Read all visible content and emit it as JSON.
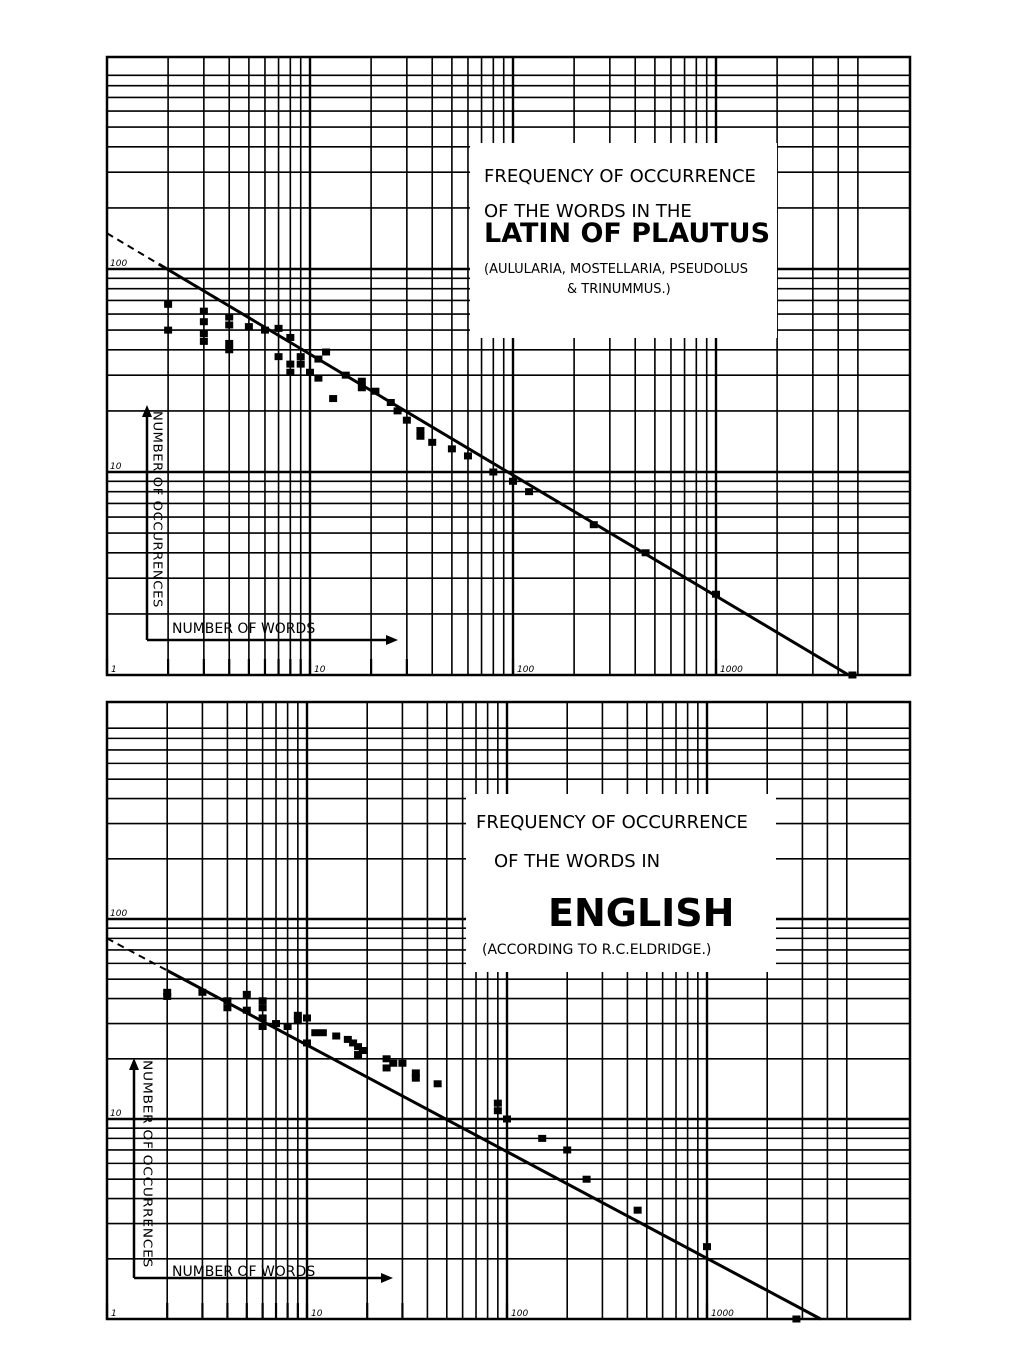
{
  "chart_data": [
    {
      "type": "scatter",
      "title": "Frequency of Occurrence of the Words in the Latin of Plautus",
      "title_lines": [
        "FREQUENCY OF OCCURRENCE",
        "OF THE WORDS IN THE",
        "LATIN OF PLAUTUS"
      ],
      "subtitle_lines": [
        "(AULULARIA, MOSTELLARIA, PSEUDOLUS",
        "& TRINUMMUS.)"
      ],
      "xlabel": "NUMBER OF WORDS",
      "ylabel": "NUMBER OF OCCURRENCES",
      "x_scale": "log",
      "y_scale": "log",
      "xlim": [
        1,
        5000
      ],
      "ylim": [
        1,
        1000
      ],
      "x_ticks": [
        1,
        10,
        100,
        1000
      ],
      "x_tick_labels": [
        "1",
        "10",
        "100",
        "1000"
      ],
      "y_ticks": [
        10,
        100
      ],
      "y_tick_labels": [
        "10",
        "100"
      ],
      "grid": true,
      "fit_line": {
        "x": [
          1,
          4500
        ],
        "y": [
          150,
          1
        ]
      },
      "fit_line_dashed_until_x": 1.8,
      "points": [
        {
          "x": 2,
          "y": 67
        },
        {
          "x": 2,
          "y": 50
        },
        {
          "x": 3,
          "y": 62
        },
        {
          "x": 3,
          "y": 55
        },
        {
          "x": 3,
          "y": 48
        },
        {
          "x": 3,
          "y": 44
        },
        {
          "x": 4,
          "y": 58
        },
        {
          "x": 4,
          "y": 53
        },
        {
          "x": 4,
          "y": 43
        },
        {
          "x": 4,
          "y": 40
        },
        {
          "x": 5,
          "y": 52
        },
        {
          "x": 6,
          "y": 50
        },
        {
          "x": 7,
          "y": 51
        },
        {
          "x": 7,
          "y": 37
        },
        {
          "x": 8,
          "y": 46
        },
        {
          "x": 8,
          "y": 34
        },
        {
          "x": 8,
          "y": 31
        },
        {
          "x": 9,
          "y": 37
        },
        {
          "x": 9,
          "y": 34
        },
        {
          "x": 10,
          "y": 31
        },
        {
          "x": 11,
          "y": 36
        },
        {
          "x": 11,
          "y": 29
        },
        {
          "x": 12,
          "y": 39
        },
        {
          "x": 13,
          "y": 23
        },
        {
          "x": 15,
          "y": 30
        },
        {
          "x": 18,
          "y": 28
        },
        {
          "x": 18,
          "y": 26
        },
        {
          "x": 21,
          "y": 25
        },
        {
          "x": 25,
          "y": 22
        },
        {
          "x": 27,
          "y": 20
        },
        {
          "x": 30,
          "y": 18
        },
        {
          "x": 35,
          "y": 16
        },
        {
          "x": 35,
          "y": 15
        },
        {
          "x": 40,
          "y": 14
        },
        {
          "x": 50,
          "y": 13
        },
        {
          "x": 60,
          "y": 12
        },
        {
          "x": 80,
          "y": 10
        },
        {
          "x": 100,
          "y": 9
        },
        {
          "x": 120,
          "y": 8
        },
        {
          "x": 250,
          "y": 5.5
        },
        {
          "x": 450,
          "y": 4
        },
        {
          "x": 1000,
          "y": 2.5
        },
        {
          "x": 4700,
          "y": 1
        }
      ]
    },
    {
      "type": "scatter",
      "title": "Frequency of Occurrence of the Words in English",
      "title_lines": [
        "FREQUENCY OF OCCURRENCE",
        "OF THE WORDS IN",
        "ENGLISH"
      ],
      "subtitle_lines": [
        "(ACCORDING TO R.C.ELDRIDGE.)"
      ],
      "xlabel": "NUMBER OF WORDS",
      "ylabel": "NUMBER OF OCCURRENCES",
      "x_scale": "log",
      "y_scale": "log",
      "xlim": [
        1,
        5000
      ],
      "ylim": [
        1,
        1000
      ],
      "x_ticks": [
        1,
        10,
        100,
        1000
      ],
      "x_tick_labels": [
        "1",
        "10",
        "100",
        "1000"
      ],
      "y_ticks": [
        10,
        100
      ],
      "y_tick_labels": [
        "10",
        "100"
      ],
      "grid": true,
      "fit_line": {
        "x": [
          1,
          3700
        ],
        "y": [
          80,
          1
        ]
      },
      "fit_line_dashed_until_x": 2,
      "points": [
        {
          "x": 2,
          "y": 43
        },
        {
          "x": 2,
          "y": 41
        },
        {
          "x": 3,
          "y": 43
        },
        {
          "x": 4,
          "y": 39
        },
        {
          "x": 4,
          "y": 36
        },
        {
          "x": 5,
          "y": 42
        },
        {
          "x": 5,
          "y": 35
        },
        {
          "x": 6,
          "y": 39
        },
        {
          "x": 6,
          "y": 36
        },
        {
          "x": 6,
          "y": 32
        },
        {
          "x": 6,
          "y": 29
        },
        {
          "x": 7,
          "y": 30
        },
        {
          "x": 8,
          "y": 29
        },
        {
          "x": 9,
          "y": 33
        },
        {
          "x": 9,
          "y": 31
        },
        {
          "x": 10,
          "y": 32
        },
        {
          "x": 10,
          "y": 24
        },
        {
          "x": 11,
          "y": 27
        },
        {
          "x": 12,
          "y": 27
        },
        {
          "x": 14,
          "y": 26
        },
        {
          "x": 16,
          "y": 25
        },
        {
          "x": 17,
          "y": 24
        },
        {
          "x": 18,
          "y": 23
        },
        {
          "x": 18,
          "y": 21
        },
        {
          "x": 19,
          "y": 22
        },
        {
          "x": 25,
          "y": 20
        },
        {
          "x": 25,
          "y": 18
        },
        {
          "x": 27,
          "y": 19
        },
        {
          "x": 30,
          "y": 19
        },
        {
          "x": 35,
          "y": 17
        },
        {
          "x": 35,
          "y": 16
        },
        {
          "x": 45,
          "y": 15
        },
        {
          "x": 90,
          "y": 12
        },
        {
          "x": 90,
          "y": 11
        },
        {
          "x": 100,
          "y": 10
        },
        {
          "x": 150,
          "y": 8
        },
        {
          "x": 200,
          "y": 7
        },
        {
          "x": 250,
          "y": 5
        },
        {
          "x": 450,
          "y": 3.5
        },
        {
          "x": 1000,
          "y": 2.3
        },
        {
          "x": 2800,
          "y": 1
        }
      ]
    }
  ]
}
